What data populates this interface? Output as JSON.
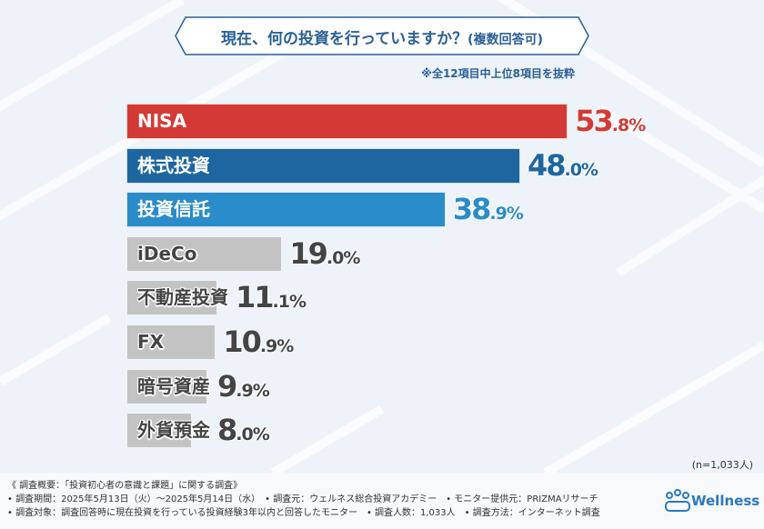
{
  "title": {
    "main": "現在、何の投資を行っていますか？",
    "sub": "(複数回答可)"
  },
  "note": "※全12項目中上位8項目を抜粋",
  "sample": "(n=1,033人)",
  "chart_data": {
    "type": "bar",
    "orientation": "horizontal",
    "categories": [
      "NISA",
      "株式投資",
      "投資信託",
      "iDeCo",
      "不動産投資",
      "FX",
      "暗号資産",
      "外貨預金"
    ],
    "values": [
      53.8,
      48.0,
      38.9,
      19.0,
      11.1,
      10.9,
      9.9,
      8.0
    ],
    "unit": "%",
    "colors": [
      "#d33a35",
      "#1e66a0",
      "#2a8cc8",
      "#c3c3c3",
      "#c3c3c3",
      "#c3c3c3",
      "#c3c3c3",
      "#c3c3c3"
    ],
    "value_colors": [
      "#d33a35",
      "#1e66a0",
      "#2a8cc8",
      "#444444",
      "#444444",
      "#444444",
      "#444444",
      "#444444"
    ],
    "grid": false
  },
  "footer": {
    "line1": "《 調査概要：「投資初心者の意識と課題」に関する調査》",
    "line2": "• 調査期間：2025年5月13日（火）～2025年5月14日（水）　• 調査元：ウェルネス総合投資アカデミー　• モニター提供元：PRIZMAリサーチ",
    "line3": "• 調査対象：調査回答時に現在投資を行っている投資経験3年以内と回答したモニター　• 調査人数：1,033人　• 調査方法：インターネット調査",
    "logo": "Wellness"
  }
}
